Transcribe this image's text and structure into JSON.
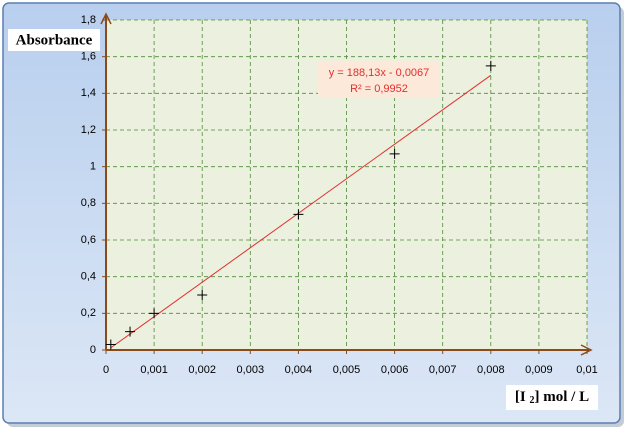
{
  "chart_data": {
    "type": "scatter",
    "y_label": "Absorbance",
    "x_label": {
      "before": "[I ",
      "sub": "2",
      "after": "] mol / L"
    },
    "x": [
      0.0001,
      0.0005,
      0.001,
      0.002,
      0.004,
      0.006,
      0.008
    ],
    "series": [
      {
        "color": "#000000",
        "values": [
          0.03,
          0.1,
          0.2,
          0.3,
          0.74,
          1.07,
          1.55
        ]
      }
    ],
    "trendline": {
      "color": "#e03030",
      "slope": 188.13,
      "intercept": -0.0067,
      "equation": "y = 188,13x - 0,0067",
      "r2_label": "R² = 0,9952"
    },
    "xlim": [
      0,
      0.01
    ],
    "xticks": [
      0,
      {
        "value": 0.001,
        "label": "0,001"
      },
      {
        "value": 0.002,
        "label": "0,002"
      },
      {
        "value": 0.003,
        "label": "0,003"
      },
      {
        "value": 0.004,
        "label": "0,004"
      },
      {
        "value": 0.005,
        "label": "0,005"
      },
      {
        "value": 0.006,
        "label": "0,006"
      },
      {
        "value": 0.007,
        "label": "0,007"
      },
      {
        "value": 0.008,
        "label": "0,008"
      },
      {
        "value": 0.009,
        "label": "0,009"
      },
      {
        "value": 0.01,
        "label": "0,01"
      }
    ],
    "ylim": [
      0,
      1.8
    ],
    "yticks": [
      0,
      {
        "value": 0.2,
        "label": "0,2"
      },
      {
        "value": 0.4,
        "label": "0,4"
      },
      {
        "value": 0.6,
        "label": "0,6"
      },
      {
        "value": 0.8,
        "label": "0,8"
      },
      1,
      {
        "value": 1.2,
        "label": "1,2"
      },
      {
        "value": 1.4,
        "label": "1,4"
      },
      {
        "value": 1.6,
        "label": "1,6"
      },
      {
        "value": 1.8,
        "label": "1,8"
      }
    ],
    "grid": true
  }
}
